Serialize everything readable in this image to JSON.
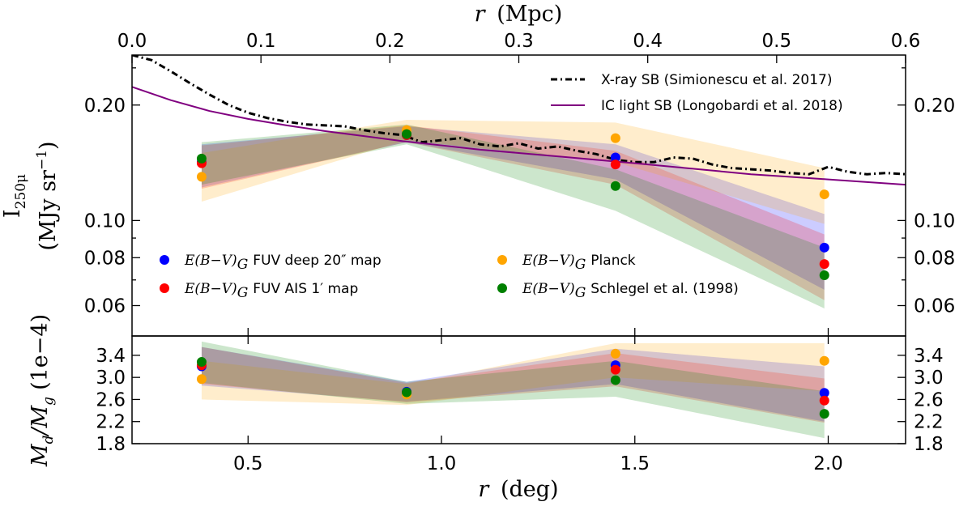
{
  "chart_data": {
    "type": "scatter",
    "top_axis": {
      "label_var": "r",
      "label_unit": "(Mpc)",
      "range": [
        0.0,
        0.6
      ],
      "ticks": [
        "0.0",
        "0.1",
        "0.2",
        "0.3",
        "0.4",
        "0.5",
        "0.6"
      ]
    },
    "bottom_axis": {
      "label_var": "r",
      "label_unit": "(deg)",
      "range": [
        0.2,
        2.2
      ],
      "ticks": [
        "0.5",
        "1.0",
        "1.5",
        "2.0"
      ]
    },
    "top_panel": {
      "ylabel_main": "I",
      "ylabel_sub": "250μ",
      "ylabel_unit": "(MJy sr",
      "ylabel_sup": "−1",
      "ylabel_close": ")",
      "yscale": "log",
      "ylim": [
        0.05,
        0.27
      ],
      "ytick_values": [
        0.06,
        0.08,
        0.1,
        0.2
      ],
      "ytick_labels": [
        "0.06",
        "0.08",
        "0.10",
        "0.20"
      ],
      "series": [
        {
          "name": "FUV deep 20″ map",
          "color": "#0000ff",
          "x": [
            0.38,
            0.91,
            1.45,
            1.99
          ],
          "y": [
            0.142,
            0.167,
            0.146,
            0.085
          ],
          "lo": [
            0.122,
            0.16,
            0.128,
            0.066
          ],
          "hi": [
            0.158,
            0.176,
            0.158,
            0.104
          ]
        },
        {
          "name": "FUV AIS 1′ map",
          "color": "#ff0000",
          "x": [
            0.38,
            0.91,
            1.45,
            1.99
          ],
          "y": [
            0.141,
            0.167,
            0.14,
            0.077
          ],
          "lo": [
            0.121,
            0.16,
            0.124,
            0.062
          ],
          "hi": [
            0.157,
            0.177,
            0.152,
            0.092
          ]
        },
        {
          "name": "Planck",
          "color": "#ffa500",
          "x": [
            0.38,
            0.91,
            1.45,
            1.99
          ],
          "y": [
            0.13,
            0.172,
            0.164,
            0.117
          ],
          "lo": [
            0.112,
            0.162,
            0.142,
            0.098
          ],
          "hi": [
            0.15,
            0.183,
            0.18,
            0.137
          ]
        },
        {
          "name": "Schlegel et al. (1998)",
          "color": "#008000",
          "x": [
            0.38,
            0.91,
            1.45,
            1.99
          ],
          "y": [
            0.145,
            0.168,
            0.123,
            0.072
          ],
          "lo": [
            0.124,
            0.158,
            0.106,
            0.059
          ],
          "hi": [
            0.16,
            0.178,
            0.136,
            0.085
          ]
        }
      ],
      "curves": [
        {
          "name": "X-ray SB (Simionescu et al. 2017)",
          "style": "dashdot",
          "color": "#000000",
          "x": [
            0.2,
            0.25,
            0.3,
            0.35,
            0.4,
            0.45,
            0.5,
            0.55,
            0.6,
            0.65,
            0.7,
            0.75,
            0.8,
            0.85,
            0.9,
            0.95,
            1.0,
            1.05,
            1.1,
            1.15,
            1.2,
            1.25,
            1.3,
            1.35,
            1.4,
            1.45,
            1.5,
            1.55,
            1.6,
            1.65,
            1.7,
            1.75,
            1.8,
            1.85,
            1.9,
            1.95,
            2.0,
            2.05,
            2.1,
            2.15,
            2.2
          ],
          "y": [
            0.27,
            0.262,
            0.245,
            0.228,
            0.213,
            0.2,
            0.191,
            0.185,
            0.181,
            0.178,
            0.177,
            0.176,
            0.172,
            0.169,
            0.167,
            0.16,
            0.162,
            0.164,
            0.158,
            0.156,
            0.159,
            0.154,
            0.156,
            0.152,
            0.149,
            0.144,
            0.142,
            0.142,
            0.146,
            0.145,
            0.14,
            0.137,
            0.136,
            0.135,
            0.133,
            0.132,
            0.138,
            0.134,
            0.132,
            0.133,
            0.132
          ]
        },
        {
          "name": "IC light SB (Longobardi et al. 2018)",
          "style": "solid",
          "color": "#800080",
          "x": [
            0.2,
            0.3,
            0.4,
            0.5,
            0.6,
            0.7,
            0.8,
            0.9,
            1.0,
            1.1,
            1.2,
            1.3,
            1.4,
            1.5,
            1.6,
            1.7,
            1.8,
            1.9,
            2.0,
            2.1,
            2.2
          ],
          "y": [
            0.223,
            0.206,
            0.193,
            0.184,
            0.177,
            0.171,
            0.166,
            0.161,
            0.157,
            0.153,
            0.15,
            0.147,
            0.144,
            0.141,
            0.138,
            0.135,
            0.132,
            0.13,
            0.128,
            0.126,
            0.124
          ]
        }
      ]
    },
    "bottom_panel": {
      "ylabel_main": "M",
      "ylabel_sub1": "d",
      "ylabel_slash": "/M",
      "ylabel_sub2": "g",
      "ylabel_unit": "(1e−4)",
      "ylim": [
        1.8,
        3.75
      ],
      "ytick_values": [
        1.8,
        2.2,
        2.6,
        3.0,
        3.4
      ],
      "ytick_labels": [
        "1.8",
        "2.2",
        "2.6",
        "3.0",
        "3.4"
      ],
      "series": [
        {
          "name": "FUV deep 20″ map",
          "color": "#0000ff",
          "x": [
            0.38,
            0.91,
            1.45,
            1.99
          ],
          "y": [
            3.2,
            2.74,
            3.22,
            2.72
          ],
          "lo": [
            2.85,
            2.56,
            2.88,
            2.2
          ],
          "hi": [
            3.55,
            2.92,
            3.52,
            3.2
          ]
        },
        {
          "name": "FUV AIS 1′ map",
          "color": "#ff0000",
          "x": [
            0.38,
            0.91,
            1.45,
            1.99
          ],
          "y": [
            3.22,
            2.72,
            3.14,
            2.58
          ],
          "lo": [
            2.88,
            2.55,
            2.84,
            2.18
          ],
          "hi": [
            3.55,
            2.9,
            3.44,
            2.98
          ]
        },
        {
          "name": "Planck",
          "color": "#ffa500",
          "x": [
            0.38,
            0.91,
            1.45,
            1.99
          ],
          "y": [
            2.97,
            2.69,
            3.43,
            3.3
          ],
          "lo": [
            2.6,
            2.5,
            3.0,
            2.75
          ],
          "hi": [
            3.3,
            2.88,
            3.62,
            3.62
          ]
        },
        {
          "name": "Schlegel et al. (1998)",
          "color": "#008000",
          "x": [
            0.38,
            0.91,
            1.45,
            1.99
          ],
          "y": [
            3.28,
            2.73,
            2.95,
            2.34
          ],
          "lo": [
            2.9,
            2.52,
            2.65,
            1.9
          ],
          "hi": [
            3.65,
            2.92,
            3.3,
            2.75
          ]
        }
      ]
    },
    "legend_points_title": "E(B−V)",
    "legend_points_sub": "G",
    "legend_points": [
      {
        "label": "FUV deep 20″ map",
        "color": "#0000ff"
      },
      {
        "label": "Planck",
        "color": "#ffa500"
      },
      {
        "label": "FUV AIS 1′ map",
        "color": "#ff0000"
      },
      {
        "label": "Schlegel et al. (1998)",
        "color": "#008000"
      }
    ],
    "legend_lines": [
      {
        "label": "X-ray SB (Simionescu et al. 2017)",
        "color": "#000000",
        "style": "dashdot"
      },
      {
        "label": "IC light SB (Longobardi et al. 2018)",
        "color": "#800080",
        "style": "solid"
      }
    ]
  }
}
